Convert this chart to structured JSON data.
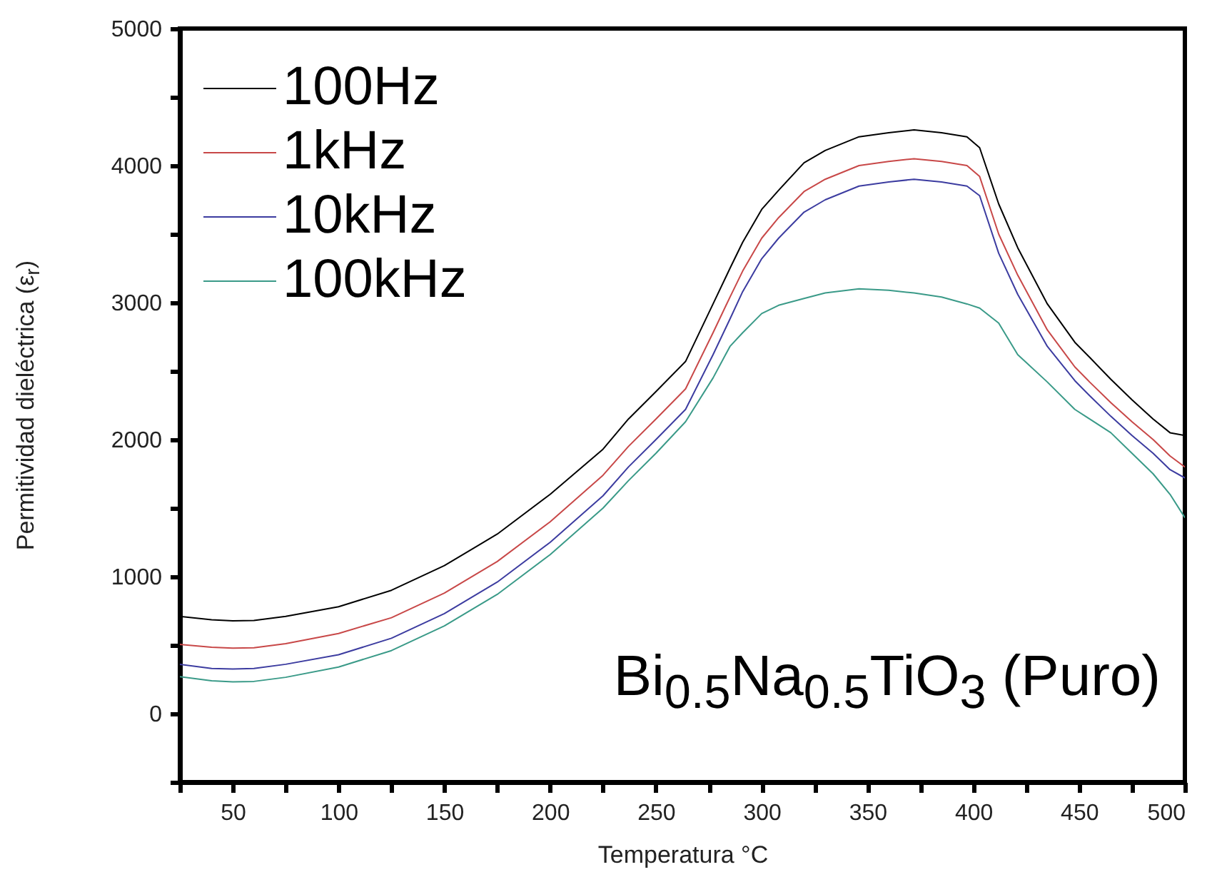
{
  "chart_data": {
    "type": "line",
    "xlabel": "Temperatura °C",
    "ylabel": "Permitividad dieléctrica  (ε$_{r}$)",
    "annotations": [
      "Bi$_{0.5}$Na$_{0.5}$TiO$_{3}$ (Puro)"
    ],
    "x": [
      25,
      40,
      50,
      60,
      75,
      100,
      125,
      150,
      175,
      200,
      225,
      237,
      250,
      264,
      277,
      285,
      291,
      300,
      308,
      320,
      330,
      346,
      360,
      372,
      385,
      397,
      403,
      412,
      421,
      435,
      448,
      455,
      465,
      475,
      485,
      493,
      500
    ],
    "series": [
      {
        "name": "100Hz",
        "color": "#000000",
        "values": [
          710,
          685,
          677,
          680,
          710,
          780,
          900,
          1080,
          1310,
          1600,
          1930,
          2150,
          2350,
          2570,
          2990,
          3250,
          3440,
          3680,
          3820,
          4020,
          4110,
          4210,
          4240,
          4260,
          4240,
          4210,
          4130,
          3720,
          3400,
          2990,
          2710,
          2600,
          2440,
          2290,
          2150,
          2050,
          2030
        ]
      },
      {
        "name": "1kHz",
        "color": "#c84848",
        "values": [
          505,
          485,
          478,
          480,
          510,
          585,
          700,
          880,
          1110,
          1400,
          1740,
          1950,
          2150,
          2370,
          2780,
          3040,
          3230,
          3470,
          3620,
          3810,
          3900,
          4000,
          4030,
          4050,
          4030,
          4000,
          3920,
          3500,
          3200,
          2800,
          2530,
          2420,
          2270,
          2130,
          2000,
          1880,
          1800
        ]
      },
      {
        "name": "10kHz",
        "color": "#3c3ca0",
        "values": [
          360,
          330,
          325,
          330,
          360,
          430,
          550,
          730,
          960,
          1250,
          1590,
          1800,
          2000,
          2220,
          2620,
          2880,
          3080,
          3320,
          3470,
          3660,
          3750,
          3850,
          3880,
          3900,
          3880,
          3850,
          3780,
          3360,
          3060,
          2680,
          2430,
          2320,
          2170,
          2030,
          1900,
          1780,
          1720
        ]
      },
      {
        "name": "100kHz",
        "color": "#3a9a88",
        "values": [
          270,
          240,
          232,
          235,
          265,
          340,
          460,
          640,
          870,
          1160,
          1500,
          1700,
          1900,
          2130,
          2450,
          2680,
          2780,
          2920,
          2980,
          3030,
          3070,
          3100,
          3090,
          3070,
          3040,
          2990,
          2960,
          2850,
          2620,
          2420,
          2220,
          2150,
          2050,
          1900,
          1750,
          1600,
          1430
        ]
      }
    ],
    "xlim": [
      25,
      500
    ],
    "xticks": [
      {
        "value": 25,
        "label": null
      },
      50,
      {
        "value": 75,
        "label": null
      },
      100,
      {
        "value": 125,
        "label": null
      },
      150,
      {
        "value": 175,
        "label": null
      },
      200,
      {
        "value": 225,
        "label": null
      },
      250,
      {
        "value": 275,
        "label": null
      },
      300,
      {
        "value": 325,
        "label": null
      },
      350,
      {
        "value": 375,
        "label": null
      },
      400,
      {
        "value": 425,
        "label": null
      },
      450,
      {
        "value": 475,
        "label": null
      },
      500
    ],
    "ylim": [
      -500,
      5000
    ],
    "yticks": [
      {
        "value": -500,
        "label": null
      },
      0,
      {
        "value": 500,
        "label": null
      },
      1000,
      {
        "value": 1500,
        "label": null
      },
      2000,
      {
        "value": 2500,
        "label": null
      },
      3000,
      {
        "value": 3500,
        "label": null
      },
      4000,
      {
        "value": 4500,
        "label": null
      },
      5000
    ],
    "legend": "top left",
    "grid": false,
    "line_style": "solid",
    "marker": "none"
  }
}
